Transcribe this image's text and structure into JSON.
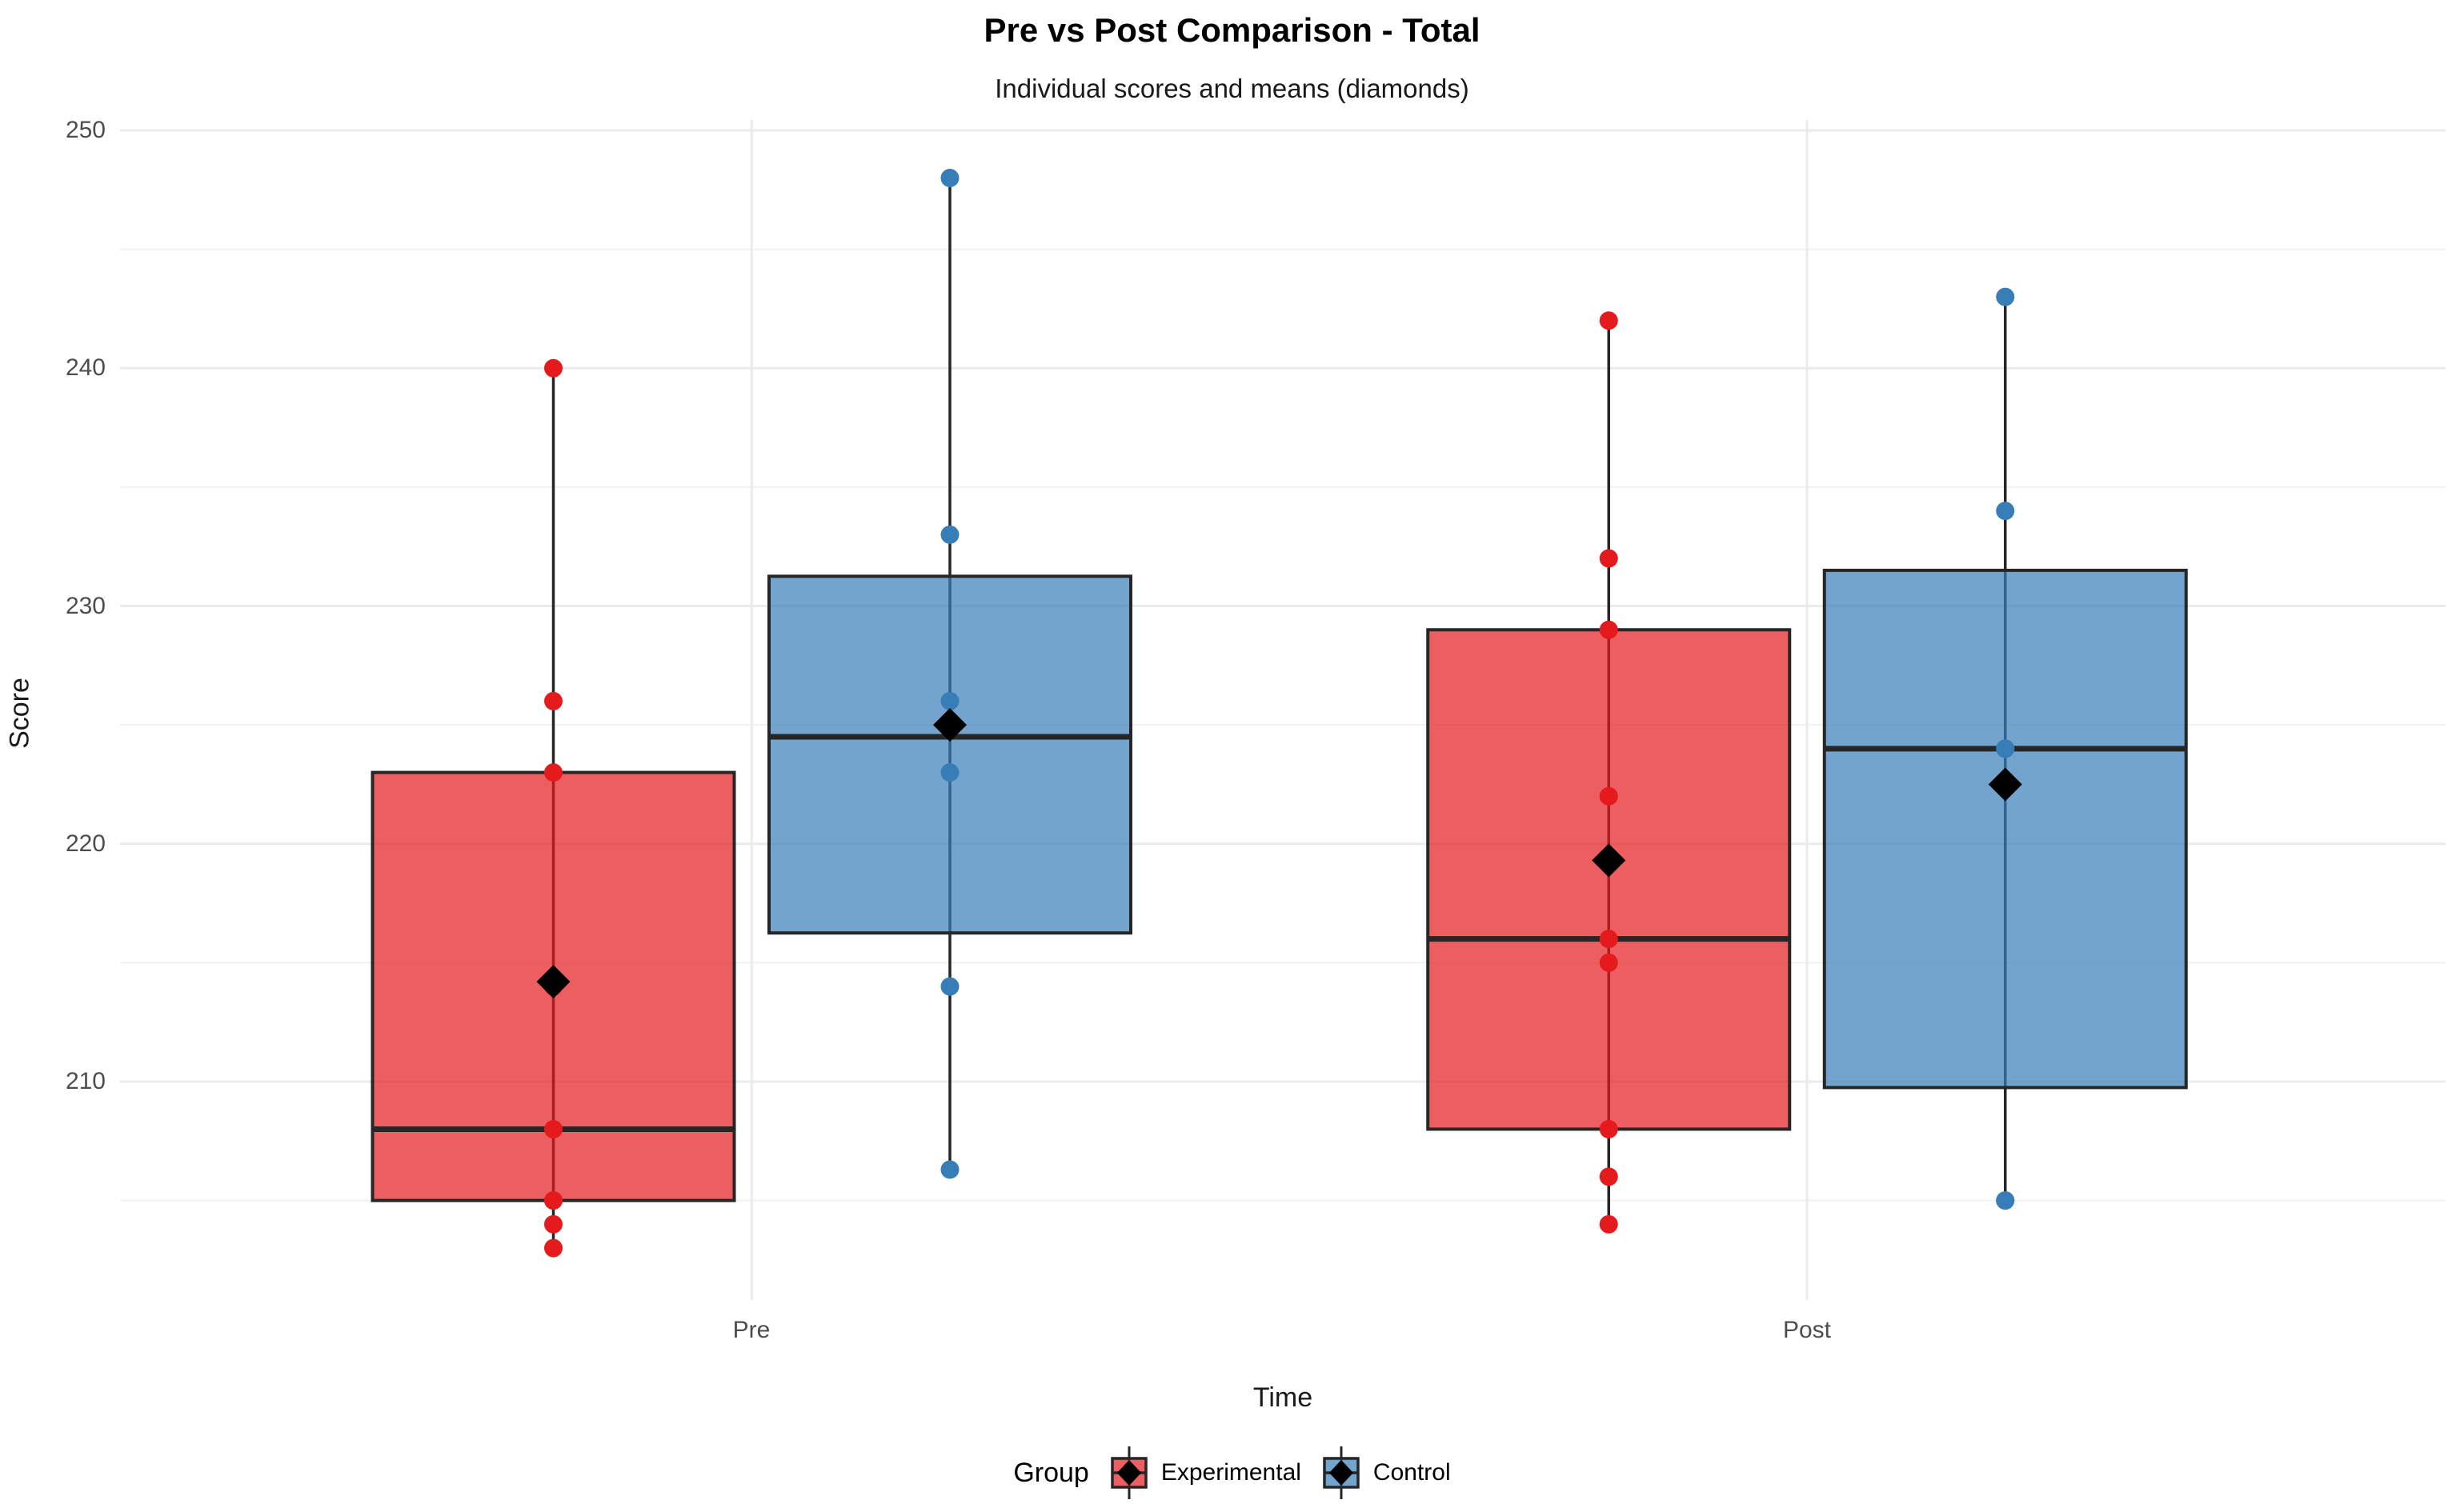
{
  "chart_data": {
    "type": "boxplot",
    "title": "Pre vs Post Comparison - Total",
    "subtitle": "Individual scores and means (diamonds)",
    "xlabel": "Time",
    "ylabel": "Score",
    "x_tick_labels": [
      "Pre",
      "Post"
    ],
    "y_ticks": [
      210,
      220,
      230,
      240,
      250
    ],
    "y_minor_ticks": [
      205,
      215,
      225,
      235,
      245
    ],
    "ylim": [
      201.3,
      250.4
    ],
    "grid": "horizontal-major-minor-plus-vertical-major",
    "legend": {
      "title": "Group",
      "position": "bottom",
      "items": [
        {
          "label": "Experimental",
          "color": "#E41A1C"
        },
        {
          "label": "Control",
          "color": "#377EB8"
        }
      ]
    },
    "style": {
      "fill_alpha": 0.7,
      "box_border_color": "#262626",
      "mean_marker": "black-diamond",
      "major_grid_color": "#EBEBEB",
      "minor_grid_color": "#F1F1F1",
      "background": "#FFFFFF"
    },
    "series": [
      {
        "time": "Pre",
        "group": "Experimental",
        "color": "#E41A1C",
        "box": {
          "whisker_low": 203,
          "q1": 205,
          "median": 208,
          "q3": 223,
          "whisker_high": 240
        },
        "mean": 214.2,
        "points": [
          240,
          226,
          223,
          214,
          208,
          205,
          205,
          204,
          203
        ]
      },
      {
        "time": "Pre",
        "group": "Control",
        "color": "#377EB8",
        "box": {
          "whisker_low": 206.3,
          "q1": 216.25,
          "median": 224.5,
          "q3": 231.25,
          "whisker_high": 248
        },
        "mean": 225.0,
        "points": [
          248,
          233,
          226,
          223,
          214,
          206.3
        ]
      },
      {
        "time": "Post",
        "group": "Experimental",
        "color": "#E41A1C",
        "box": {
          "whisker_low": 204,
          "q1": 208,
          "median": 216,
          "q3": 229,
          "whisker_high": 242
        },
        "mean": 219.3,
        "points": [
          242,
          232,
          229,
          222,
          216,
          215,
          208,
          206,
          204
        ]
      },
      {
        "time": "Post",
        "group": "Control",
        "color": "#377EB8",
        "box": {
          "whisker_low": 205,
          "q1": 209.75,
          "median": 224,
          "q3": 231.5,
          "whisker_high": 243
        },
        "mean": 222.5,
        "points": [
          243,
          234,
          224,
          224,
          205,
          205
        ]
      }
    ]
  }
}
